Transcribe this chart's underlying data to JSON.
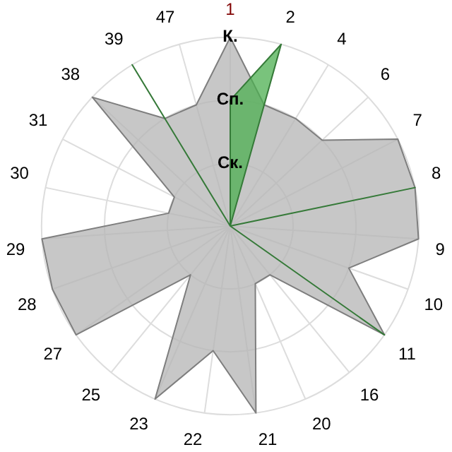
{
  "chart_data": {
    "type": "radar",
    "categories": [
      "1",
      "2",
      "4",
      "6",
      "7",
      "8",
      "9",
      "10",
      "11",
      "16",
      "20",
      "21",
      "22",
      "23",
      "25",
      "27",
      "28",
      "29",
      "30",
      "31",
      "38",
      "39",
      "47"
    ],
    "series": [
      {
        "color": "#b4b4b4",
        "values": [
          3,
          2,
          2,
          2,
          3,
          3,
          3,
          2,
          3,
          1,
          1,
          3,
          2,
          3,
          1,
          3,
          3,
          3,
          1,
          1,
          3,
          2,
          2
        ]
      },
      {
        "color": "#4caf50",
        "values": [
          2,
          3,
          0,
          0,
          0,
          3,
          0,
          0,
          3,
          0,
          0,
          0,
          0,
          0,
          0,
          0,
          0,
          0,
          0,
          0,
          0,
          3,
          0
        ]
      }
    ],
    "ylim": [
      0,
      3
    ],
    "yticks": [
      {
        "value": 1,
        "label": "Ск."
      },
      {
        "value": 2,
        "label": "Сп."
      },
      {
        "value": 3,
        "label": "К."
      }
    ],
    "grid": true,
    "legend": false,
    "marker": "none"
  }
}
